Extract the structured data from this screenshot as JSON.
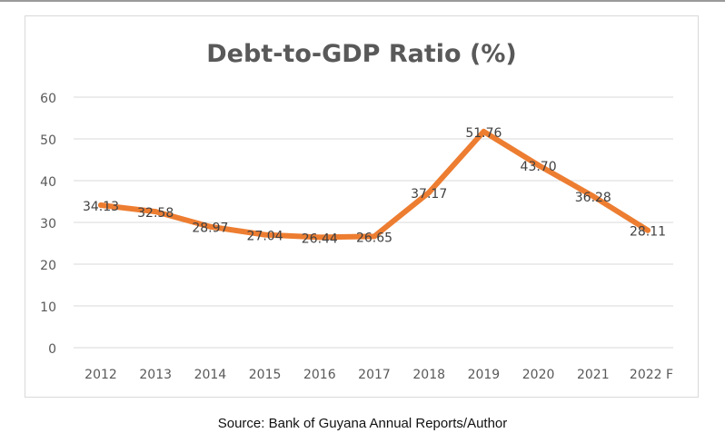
{
  "chart_data": {
    "type": "line",
    "title": "Debt-to-GDP Ratio (%)",
    "xlabel": "",
    "ylabel": "",
    "categories": [
      "2012",
      "2013",
      "2014",
      "2015",
      "2016",
      "2017",
      "2018",
      "2019",
      "2020",
      "2021",
      "2022 F"
    ],
    "series": [
      {
        "name": "Debt-to-GDP Ratio (%)",
        "values": [
          34.13,
          32.58,
          28.97,
          27.04,
          26.44,
          26.65,
          37.17,
          51.76,
          43.7,
          36.28,
          28.11
        ],
        "labels": [
          "34.13",
          "32.58",
          "28.97",
          "27.04",
          "26.44",
          "26.65",
          "37.17",
          "51.76",
          "43.70",
          "36.28",
          "28.11"
        ],
        "color": "#ED7D31"
      }
    ],
    "yticks": [
      "0",
      "10",
      "20",
      "30",
      "40",
      "50",
      "60"
    ],
    "ylim": [
      0,
      60
    ],
    "grid": true,
    "legend": "none"
  },
  "source": "Source: Bank of Guyana Annual Reports/Author"
}
